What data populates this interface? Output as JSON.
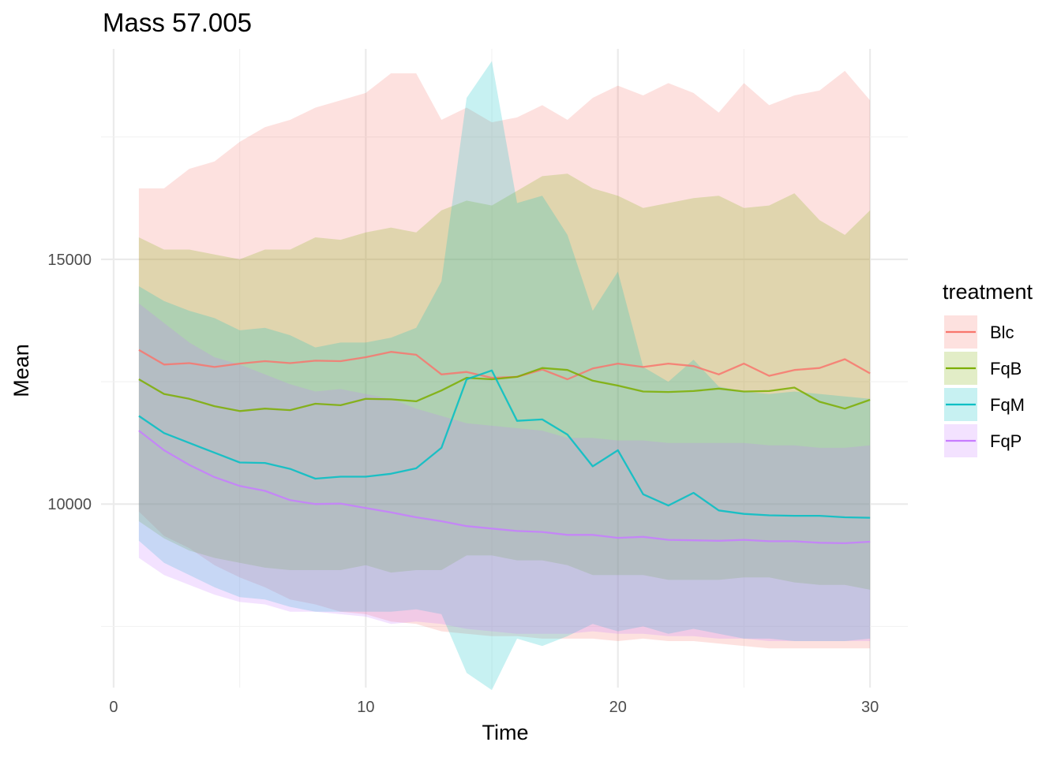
{
  "chart_data": {
    "type": "area",
    "title": "Mass 57.005",
    "xlabel": "Time",
    "ylabel": "Mean",
    "xlim": [
      -0.5,
      31.5
    ],
    "ylim": [
      6250,
      19300
    ],
    "x_ticks": [
      0,
      10,
      20,
      30
    ],
    "y_ticks": [
      10000,
      15000
    ],
    "grid": true,
    "legend": {
      "title": "treatment",
      "position": "right"
    },
    "x": [
      1,
      2,
      3,
      4,
      5,
      6,
      7,
      8,
      9,
      10,
      11,
      12,
      13,
      14,
      15,
      16,
      17,
      18,
      19,
      20,
      21,
      22,
      23,
      24,
      25,
      26,
      27,
      28,
      29,
      30
    ],
    "series": [
      {
        "name": "Blc",
        "color": "#f8766d",
        "mean": [
          13150,
          12850,
          12880,
          12800,
          12870,
          12920,
          12880,
          12930,
          12920,
          13000,
          13110,
          13050,
          12650,
          12700,
          12580,
          12600,
          12750,
          12550,
          12770,
          12870,
          12800,
          12870,
          12820,
          12650,
          12870,
          12620,
          12740,
          12780,
          12960,
          12670
        ],
        "upper": [
          16450,
          16450,
          16850,
          17000,
          17400,
          17700,
          17850,
          18100,
          18250,
          18400,
          18800,
          18800,
          17850,
          18100,
          17800,
          17900,
          18150,
          17850,
          18300,
          18550,
          18350,
          18600,
          18400,
          18000,
          18600,
          18150,
          18350,
          18450,
          18850,
          18250
        ],
        "lower": [
          9850,
          9350,
          9100,
          8750,
          8500,
          8300,
          8050,
          7950,
          7800,
          7750,
          7600,
          7550,
          7400,
          7350,
          7300,
          7300,
          7250,
          7250,
          7250,
          7200,
          7250,
          7200,
          7200,
          7150,
          7100,
          7050,
          7050,
          7050,
          7050,
          7050
        ]
      },
      {
        "name": "FqB",
        "color": "#7cae00",
        "mean": [
          12550,
          12250,
          12150,
          12000,
          11900,
          11950,
          11920,
          12050,
          12020,
          12150,
          12140,
          12100,
          12320,
          12580,
          12550,
          12600,
          12780,
          12740,
          12520,
          12420,
          12300,
          12290,
          12310,
          12360,
          12300,
          12310,
          12380,
          12090,
          11950,
          12130
        ],
        "upper": [
          15450,
          15200,
          15200,
          15100,
          15000,
          15200,
          15200,
          15450,
          15400,
          15550,
          15650,
          15550,
          16000,
          16200,
          16100,
          16400,
          16700,
          16750,
          16450,
          16300,
          16050,
          16150,
          16250,
          16300,
          16050,
          16100,
          16350,
          15800,
          15500,
          16000
        ],
        "lower": [
          9650,
          9300,
          9050,
          8900,
          8800,
          8700,
          8650,
          8650,
          8650,
          8750,
          8600,
          8650,
          8650,
          8950,
          8950,
          8850,
          8850,
          8750,
          8550,
          8550,
          8550,
          8450,
          8450,
          8450,
          8500,
          8500,
          8400,
          8350,
          8350,
          8250
        ]
      },
      {
        "name": "FqM",
        "color": "#00bfc4",
        "mean": [
          11800,
          11450,
          11250,
          11050,
          10850,
          10840,
          10720,
          10520,
          10560,
          10560,
          10620,
          10730,
          11150,
          12550,
          12730,
          11700,
          11730,
          11420,
          10770,
          11100,
          10200,
          9970,
          10230,
          9870,
          9800,
          9770,
          9760,
          9760,
          9730,
          9720
        ],
        "upper": [
          14450,
          14150,
          13950,
          13800,
          13550,
          13600,
          13450,
          13200,
          13300,
          13300,
          13400,
          13600,
          14550,
          18300,
          19050,
          16150,
          16300,
          15500,
          13950,
          14750,
          12800,
          12500,
          12950,
          12400,
          12300,
          12250,
          12300,
          12250,
          12200,
          12150
        ],
        "lower": [
          9250,
          8800,
          8550,
          8300,
          8100,
          8050,
          7900,
          7800,
          7800,
          7800,
          7800,
          7850,
          7750,
          6550,
          6200,
          7250,
          7100,
          7300,
          7550,
          7400,
          7500,
          7350,
          7450,
          7350,
          7250,
          7250,
          7200,
          7200,
          7200,
          7250
        ]
      },
      {
        "name": "FqP",
        "color": "#c77cff",
        "mean": [
          11500,
          11100,
          10800,
          10550,
          10370,
          10270,
          10080,
          10000,
          10010,
          9920,
          9830,
          9730,
          9650,
          9550,
          9500,
          9450,
          9430,
          9370,
          9370,
          9310,
          9330,
          9270,
          9260,
          9250,
          9270,
          9240,
          9240,
          9210,
          9200,
          9230
        ],
        "upper": [
          14100,
          13700,
          13300,
          13000,
          12850,
          12650,
          12450,
          12300,
          12350,
          12250,
          12150,
          11950,
          11800,
          11650,
          11600,
          11550,
          11500,
          11350,
          11350,
          11300,
          11300,
          11250,
          11250,
          11250,
          11250,
          11200,
          11200,
          11150,
          11150,
          11200
        ],
        "lower": [
          8900,
          8550,
          8350,
          8150,
          8000,
          7950,
          7800,
          7800,
          7750,
          7700,
          7550,
          7600,
          7550,
          7450,
          7400,
          7350,
          7350,
          7350,
          7400,
          7350,
          7350,
          7300,
          7300,
          7250,
          7250,
          7200,
          7200,
          7200,
          7200,
          7200
        ]
      }
    ]
  }
}
